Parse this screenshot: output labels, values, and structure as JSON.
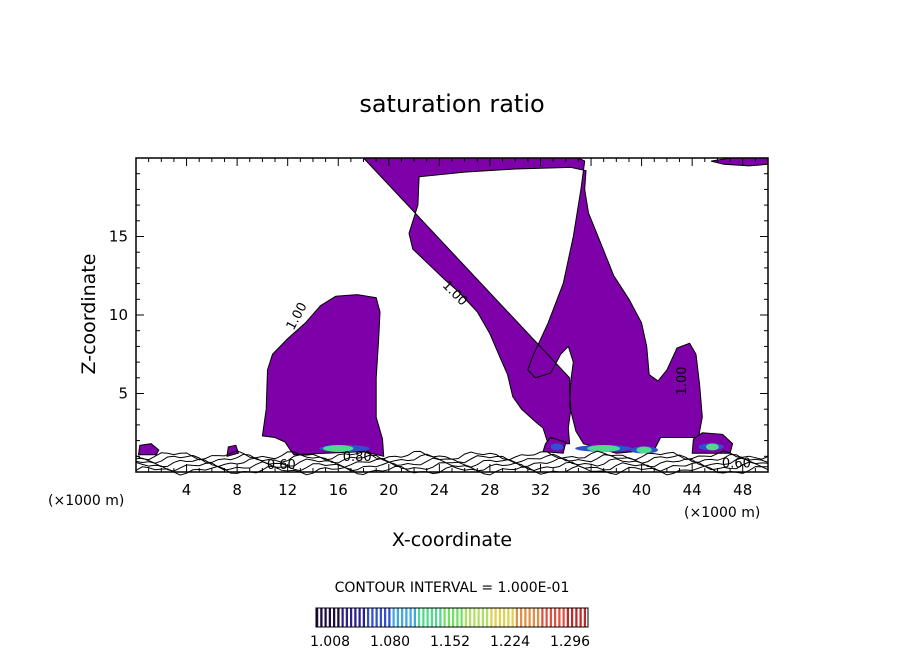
{
  "chart_data": {
    "type": "contour",
    "title": "saturation ratio",
    "xlabel": "X-coordinate",
    "ylabel": "Z-coordinate",
    "x_unit_label": "(×1000 m)",
    "xlim": [
      0,
      50
    ],
    "ylim": [
      0,
      20
    ],
    "x_ticks": [
      4,
      8,
      12,
      16,
      20,
      24,
      28,
      32,
      36,
      40,
      44,
      48
    ],
    "y_ticks": [
      5,
      10,
      15
    ],
    "contour_labels": [
      {
        "text": "1.00",
        "x": 13,
        "z": 9.8,
        "angle": -62
      },
      {
        "text": "1.00",
        "x": 25,
        "z": 11.2,
        "angle": 45
      },
      {
        "text": "1.00",
        "x": 43.5,
        "z": 5.8,
        "angle": -90
      },
      {
        "text": "0.80",
        "x": 17.5,
        "z": 0.7,
        "angle": 0
      },
      {
        "text": "0.60",
        "x": 11.5,
        "z": 0.2,
        "angle": 0
      },
      {
        "text": "0.60",
        "x": 47.5,
        "z": 0.3,
        "angle": 0
      }
    ],
    "contour_interval_label": "CONTOUR INTERVAL = 1.000E-01",
    "colorbar": {
      "min": 1.0,
      "max": 1.32,
      "tick_labels": [
        "1.008",
        "1.080",
        "1.152",
        "1.224",
        "1.296"
      ],
      "colors": [
        "#1a0a40",
        "#2a1f8c",
        "#3050d0",
        "#40a8e0",
        "#50d890",
        "#70e060",
        "#b0e060",
        "#e0d050",
        "#e09040",
        "#e05040",
        "#c02828"
      ]
    },
    "fill_color": "#7d00a8"
  }
}
